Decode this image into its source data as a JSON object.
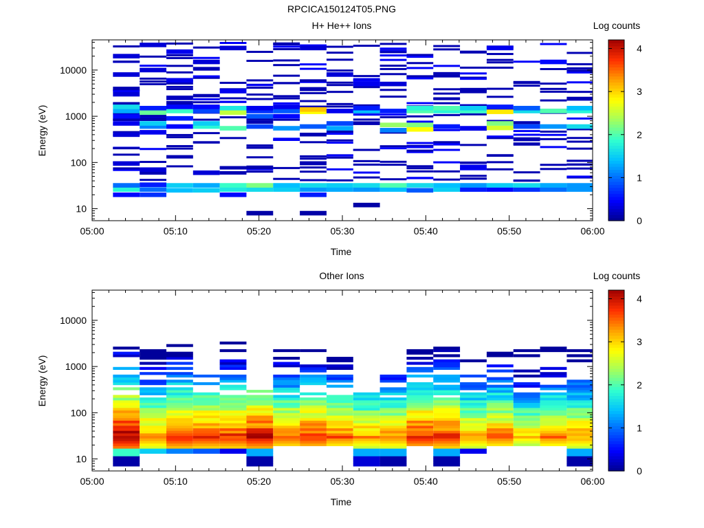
{
  "figure_title": "RPCICA150124T05.PNG",
  "colormap": [
    "#00008f",
    "#0000ff",
    "#0060ff",
    "#00c0ff",
    "#30ffd0",
    "#a0ff60",
    "#ffff00",
    "#ffa000",
    "#ff3000",
    "#a00000"
  ],
  "chart_data": [
    {
      "type": "heatmap",
      "title": "H+ He++ Ions",
      "xlabel": "Time",
      "ylabel": "Energy (eV)",
      "x_ticks": [
        "05:00",
        "05:10",
        "05:20",
        "05:30",
        "05:40",
        "05:50",
        "06:00"
      ],
      "y_ticks": [
        "10",
        "100",
        "1000",
        "10000"
      ],
      "y_scale": "log",
      "ylim": [
        5.5,
        45000
      ],
      "xlim_minutes": [
        0,
        60
      ],
      "colorbar_label": "Log counts",
      "colorbar_ticks": [
        "0",
        "1",
        "2",
        "3",
        "4"
      ],
      "colorbar_range": [
        0,
        4.2
      ],
      "time_bins_minutes": [
        2.5,
        5.7,
        8.9,
        12.1,
        15.3,
        18.5,
        21.7,
        24.9,
        28.1,
        31.3,
        34.5,
        37.7,
        40.9,
        44.1,
        47.3,
        50.5,
        53.7,
        56.9,
        60.0
      ],
      "cells": [
        {
          "t": 0,
          "e": 20,
          "v": 0.5
        },
        {
          "t": 0,
          "e": 26,
          "v": 1.8
        },
        {
          "t": 0,
          "e": 32,
          "v": 1.0
        },
        {
          "t": 0,
          "e": 95,
          "v": 0.3
        },
        {
          "t": 0,
          "e": 400,
          "v": 0.3
        },
        {
          "t": 0,
          "e": 700,
          "v": 0.4
        },
        {
          "t": 0,
          "e": 1000,
          "v": 0.5
        },
        {
          "t": 0,
          "e": 1300,
          "v": 1.3
        },
        {
          "t": 0,
          "e": 1600,
          "v": 1.6
        },
        {
          "t": 0,
          "e": 3000,
          "v": 0.3
        },
        {
          "t": 0,
          "e": 8000,
          "v": 0.3
        },
        {
          "t": 0,
          "e": 20000,
          "v": 0.3
        },
        {
          "t": 1,
          "e": 20,
          "v": 0.7
        },
        {
          "t": 1,
          "e": 26,
          "v": 1.0
        },
        {
          "t": 1,
          "e": 33,
          "v": 0.6
        },
        {
          "t": 1,
          "e": 70,
          "v": 0.3
        },
        {
          "t": 1,
          "e": 450,
          "v": 0.4
        },
        {
          "t": 1,
          "e": 600,
          "v": 1.1
        },
        {
          "t": 1,
          "e": 700,
          "v": 1.5
        },
        {
          "t": 1,
          "e": 1200,
          "v": 2.1
        },
        {
          "t": 1,
          "e": 1500,
          "v": 0.6
        },
        {
          "t": 1,
          "e": 10000,
          "v": 0.3
        },
        {
          "t": 1,
          "e": 35000,
          "v": 0.3
        },
        {
          "t": 2,
          "e": 25,
          "v": 1.4
        },
        {
          "t": 2,
          "e": 32,
          "v": 1.5
        },
        {
          "t": 2,
          "e": 600,
          "v": 0.5
        },
        {
          "t": 2,
          "e": 900,
          "v": 0.6
        },
        {
          "t": 2,
          "e": 1300,
          "v": 1.9
        },
        {
          "t": 2,
          "e": 1600,
          "v": 0.5
        },
        {
          "t": 2,
          "e": 2500,
          "v": 0.2
        },
        {
          "t": 2,
          "e": 6000,
          "v": 0.4
        },
        {
          "t": 2,
          "e": 25000,
          "v": 0.4
        },
        {
          "t": 3,
          "e": 25,
          "v": 1.5
        },
        {
          "t": 3,
          "e": 32,
          "v": 1.3
        },
        {
          "t": 3,
          "e": 60,
          "v": 0.3
        },
        {
          "t": 3,
          "e": 600,
          "v": 1.8
        },
        {
          "t": 3,
          "e": 700,
          "v": 1.5
        },
        {
          "t": 3,
          "e": 1300,
          "v": 0.8
        },
        {
          "t": 3,
          "e": 1600,
          "v": 0.5
        },
        {
          "t": 3,
          "e": 15000,
          "v": 0.3
        },
        {
          "t": 4,
          "e": 20,
          "v": 0.5
        },
        {
          "t": 4,
          "e": 26,
          "v": 1.7
        },
        {
          "t": 4,
          "e": 32,
          "v": 1.9
        },
        {
          "t": 4,
          "e": 550,
          "v": 2.0
        },
        {
          "t": 4,
          "e": 1200,
          "v": 2.5
        },
        {
          "t": 4,
          "e": 1500,
          "v": 1.7
        },
        {
          "t": 4,
          "e": 3500,
          "v": 0.4
        },
        {
          "t": 4,
          "e": 30000,
          "v": 0.3
        },
        {
          "t": 5,
          "e": 8,
          "v": 0.1
        },
        {
          "t": 5,
          "e": 26,
          "v": 1.6
        },
        {
          "t": 5,
          "e": 32,
          "v": 2.2
        },
        {
          "t": 5,
          "e": 600,
          "v": 0.8
        },
        {
          "t": 5,
          "e": 1000,
          "v": 0.9
        },
        {
          "t": 5,
          "e": 1300,
          "v": 0.7
        },
        {
          "t": 5,
          "e": 1500,
          "v": 0.4
        },
        {
          "t": 6,
          "e": 26,
          "v": 1.5
        },
        {
          "t": 6,
          "e": 32,
          "v": 1.4
        },
        {
          "t": 6,
          "e": 550,
          "v": 1.2
        },
        {
          "t": 6,
          "e": 1000,
          "v": 0.5
        },
        {
          "t": 6,
          "e": 1300,
          "v": 0.9
        },
        {
          "t": 6,
          "e": 1600,
          "v": 0.4
        },
        {
          "t": 7,
          "e": 8,
          "v": 0.1
        },
        {
          "t": 7,
          "e": 20,
          "v": 0.6
        },
        {
          "t": 7,
          "e": 26,
          "v": 1.2
        },
        {
          "t": 7,
          "e": 32,
          "v": 1.6
        },
        {
          "t": 7,
          "e": 600,
          "v": 0.9
        },
        {
          "t": 7,
          "e": 1250,
          "v": 2.8
        },
        {
          "t": 7,
          "e": 1400,
          "v": 3.1
        },
        {
          "t": 7,
          "e": 30000,
          "v": 0.3
        },
        {
          "t": 8,
          "e": 26,
          "v": 1.3
        },
        {
          "t": 8,
          "e": 32,
          "v": 1.5
        },
        {
          "t": 8,
          "e": 550,
          "v": 1.3
        },
        {
          "t": 8,
          "e": 700,
          "v": 0.8
        },
        {
          "t": 8,
          "e": 1300,
          "v": 0.4
        },
        {
          "t": 8,
          "e": 8000,
          "v": 0.3
        },
        {
          "t": 9,
          "e": 12,
          "v": 0.1
        },
        {
          "t": 9,
          "e": 26,
          "v": 1.2
        },
        {
          "t": 9,
          "e": 32,
          "v": 1.6
        },
        {
          "t": 9,
          "e": 1300,
          "v": 1.4
        },
        {
          "t": 9,
          "e": 1500,
          "v": 0.6
        },
        {
          "t": 9,
          "e": 5000,
          "v": 0.4
        },
        {
          "t": 10,
          "e": 26,
          "v": 1.4
        },
        {
          "t": 10,
          "e": 32,
          "v": 2.0
        },
        {
          "t": 10,
          "e": 500,
          "v": 1.1
        },
        {
          "t": 10,
          "e": 650,
          "v": 2.3
        },
        {
          "t": 10,
          "e": 1300,
          "v": 0.6
        },
        {
          "t": 10,
          "e": 5000,
          "v": 0.3
        },
        {
          "t": 11,
          "e": 25,
          "v": 0.9
        },
        {
          "t": 11,
          "e": 32,
          "v": 1.6
        },
        {
          "t": 11,
          "e": 520,
          "v": 2.8
        },
        {
          "t": 11,
          "e": 650,
          "v": 2.2
        },
        {
          "t": 11,
          "e": 1300,
          "v": 2.0
        },
        {
          "t": 11,
          "e": 1500,
          "v": 1.8
        },
        {
          "t": 12,
          "e": 26,
          "v": 1.5
        },
        {
          "t": 12,
          "e": 32,
          "v": 1.4
        },
        {
          "t": 12,
          "e": 600,
          "v": 0.6
        },
        {
          "t": 12,
          "e": 1300,
          "v": 1.8
        },
        {
          "t": 12,
          "e": 1500,
          "v": 2.0
        },
        {
          "t": 13,
          "e": 26,
          "v": 0.6
        },
        {
          "t": 13,
          "e": 32,
          "v": 1.2
        },
        {
          "t": 13,
          "e": 80,
          "v": 0.4
        },
        {
          "t": 13,
          "e": 550,
          "v": 0.4
        },
        {
          "t": 13,
          "e": 1300,
          "v": 1.9
        },
        {
          "t": 13,
          "e": 1500,
          "v": 1.5
        },
        {
          "t": 14,
          "e": 26,
          "v": 0.5
        },
        {
          "t": 14,
          "e": 32,
          "v": 1.5
        },
        {
          "t": 14,
          "e": 560,
          "v": 2.6
        },
        {
          "t": 14,
          "e": 700,
          "v": 2.2
        },
        {
          "t": 14,
          "e": 1250,
          "v": 2.9
        },
        {
          "t": 14,
          "e": 1600,
          "v": 0.6
        },
        {
          "t": 14,
          "e": 30000,
          "v": 0.4
        },
        {
          "t": 15,
          "e": 26,
          "v": 0.7
        },
        {
          "t": 15,
          "e": 32,
          "v": 1.6
        },
        {
          "t": 15,
          "e": 600,
          "v": 0.8
        },
        {
          "t": 15,
          "e": 1300,
          "v": 1.6
        },
        {
          "t": 15,
          "e": 1500,
          "v": 0.9
        },
        {
          "t": 16,
          "e": 26,
          "v": 1.0
        },
        {
          "t": 16,
          "e": 32,
          "v": 1.3
        },
        {
          "t": 16,
          "e": 600,
          "v": 1.2
        },
        {
          "t": 16,
          "e": 1300,
          "v": 2.0
        },
        {
          "t": 16,
          "e": 15000,
          "v": 0.5
        },
        {
          "t": 17,
          "e": 26,
          "v": 1.2
        },
        {
          "t": 17,
          "e": 32,
          "v": 1.2
        },
        {
          "t": 17,
          "e": 600,
          "v": 1.6
        },
        {
          "t": 17,
          "e": 1300,
          "v": 1.8
        },
        {
          "t": 17,
          "e": 1500,
          "v": 1.4
        }
      ],
      "background_lines_note": "sparse single-count lines above 40 eV"
    },
    {
      "type": "heatmap",
      "title": "Other Ions",
      "xlabel": "Time",
      "ylabel": "Energy (eV)",
      "x_ticks": [
        "05:00",
        "05:10",
        "05:20",
        "05:30",
        "05:40",
        "05:50",
        "06:00"
      ],
      "y_ticks": [
        "10",
        "100",
        "1000",
        "10000"
      ],
      "y_scale": "log",
      "ylim": [
        5.5,
        45000
      ],
      "xlim_minutes": [
        0,
        60
      ],
      "colorbar_label": "Log counts",
      "colorbar_ticks": [
        "0",
        "1",
        "2",
        "3",
        "4"
      ],
      "colorbar_range": [
        0,
        4.2
      ],
      "time_bins_minutes": [
        2.5,
        5.7,
        8.9,
        12.1,
        15.3,
        18.5,
        21.7,
        24.9,
        28.1,
        31.3,
        34.5,
        37.7,
        40.9,
        44.1,
        47.3,
        50.5,
        53.7,
        56.9,
        60.0
      ],
      "peak_profile": [
        {
          "t": 0,
          "peak": 4.2,
          "bottom": 7,
          "top": 2800,
          "v10": 0.1,
          "v13": 1.9
        },
        {
          "t": 1,
          "peak": 3.4,
          "bottom": 13,
          "top": 2400,
          "v13": 1.5
        },
        {
          "t": 2,
          "peak": 3.9,
          "bottom": 13,
          "top": 3000,
          "v13": 1.1
        },
        {
          "t": 3,
          "peak": 3.8,
          "bottom": 13,
          "top": 700,
          "v13": 0.9
        },
        {
          "t": 4,
          "peak": 3.8,
          "bottom": 13,
          "top": 3200,
          "v13": 0.4
        },
        {
          "t": 5,
          "peak": 4.0,
          "bottom": 7,
          "top": 300,
          "v10": 0.1
        },
        {
          "t": 6,
          "peak": 3.6,
          "bottom": 17,
          "top": 2600
        },
        {
          "t": 7,
          "peak": 3.8,
          "bottom": 17,
          "top": 2300
        },
        {
          "t": 8,
          "peak": 3.5,
          "bottom": 17,
          "top": 2300
        },
        {
          "t": 9,
          "peak": 3.3,
          "bottom": 7,
          "top": 300,
          "v10": 0.3
        },
        {
          "t": 10,
          "peak": 3.4,
          "bottom": 7,
          "top": 600,
          "v10": 0.1
        },
        {
          "t": 11,
          "peak": 3.9,
          "bottom": 17,
          "top": 2400
        },
        {
          "t": 12,
          "peak": 3.8,
          "bottom": 7,
          "top": 2400,
          "v10": 0.1
        },
        {
          "t": 13,
          "peak": 3.3,
          "bottom": 13,
          "top": 1300,
          "v13": 0.4
        },
        {
          "t": 14,
          "peak": 3.5,
          "bottom": 17,
          "top": 2600
        },
        {
          "t": 15,
          "peak": 3.0,
          "bottom": 17,
          "top": 2500
        },
        {
          "t": 16,
          "peak": 3.4,
          "bottom": 17,
          "top": 2400
        },
        {
          "t": 17,
          "peak": 3.3,
          "bottom": 7,
          "top": 2400,
          "v10": 0.1
        }
      ]
    }
  ]
}
